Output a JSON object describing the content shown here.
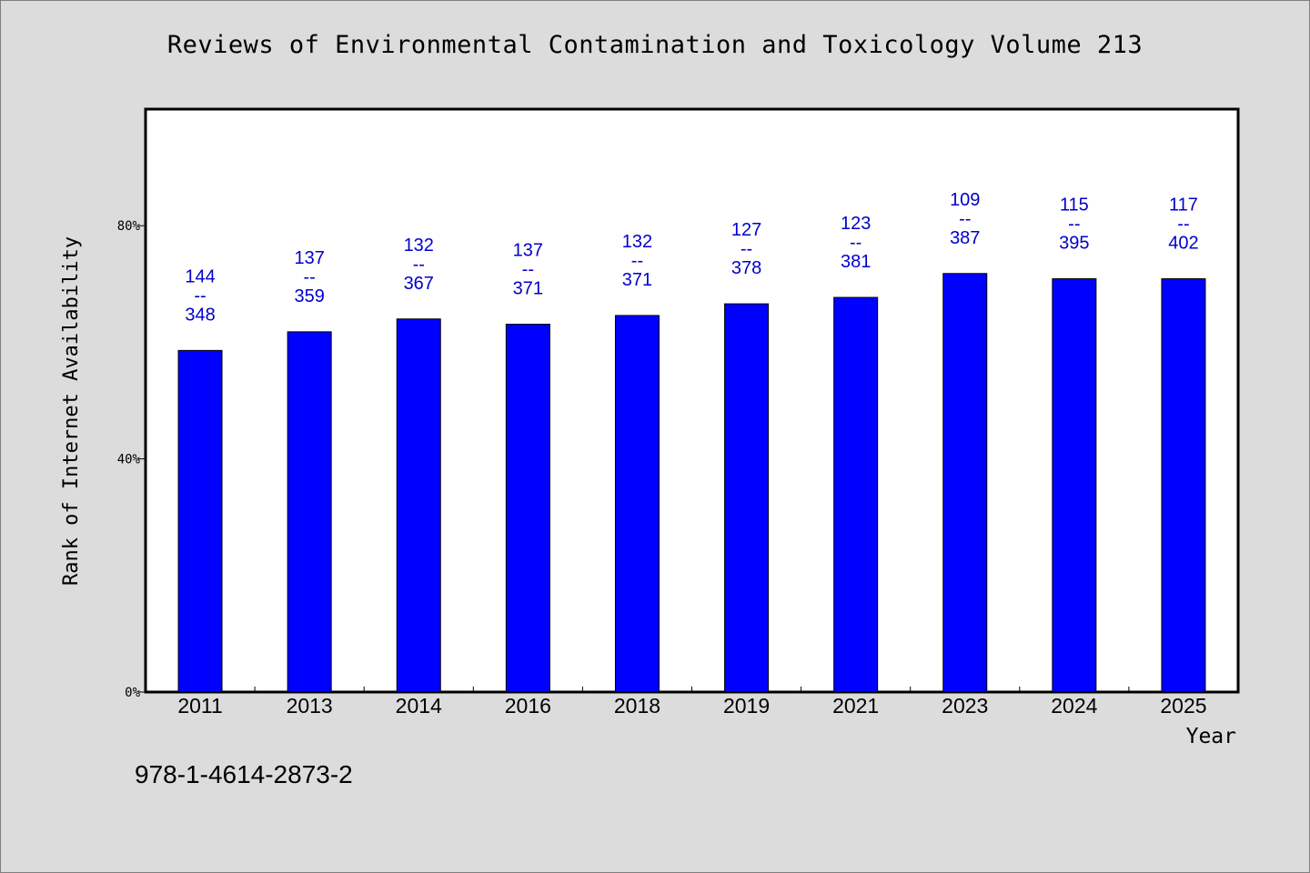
{
  "chart_data": {
    "type": "bar",
    "title": "Reviews of Environmental Contamination and Toxicology Volume 213",
    "xlabel": "Year",
    "ylabel": "Rank of Internet Availability",
    "ylim": [
      0,
      100
    ],
    "yticks": [
      0,
      40,
      80
    ],
    "ytick_labels": [
      "0%",
      "40%",
      "80%"
    ],
    "categories": [
      "2011",
      "2013",
      "2014",
      "2016",
      "2018",
      "2019",
      "2021",
      "2023",
      "2024",
      "2025"
    ],
    "values": [
      58.6,
      61.8,
      64.0,
      63.1,
      64.6,
      66.6,
      67.7,
      71.8,
      70.9,
      70.9
    ],
    "annotations": [
      [
        "144",
        "--",
        "348"
      ],
      [
        "137",
        "--",
        "359"
      ],
      [
        "132",
        "--",
        "367"
      ],
      [
        "137",
        "--",
        "371"
      ],
      [
        "132",
        "--",
        "371"
      ],
      [
        "127",
        "--",
        "378"
      ],
      [
        "123",
        "--",
        "381"
      ],
      [
        "109",
        "--",
        "387"
      ],
      [
        "115",
        "--",
        "395"
      ],
      [
        "117",
        "--",
        "402"
      ]
    ],
    "grid": false,
    "bar_color": "#0000ff",
    "annotation_color": "#0000cc"
  },
  "footer": {
    "isbn": "978-1-4614-2873-2"
  }
}
